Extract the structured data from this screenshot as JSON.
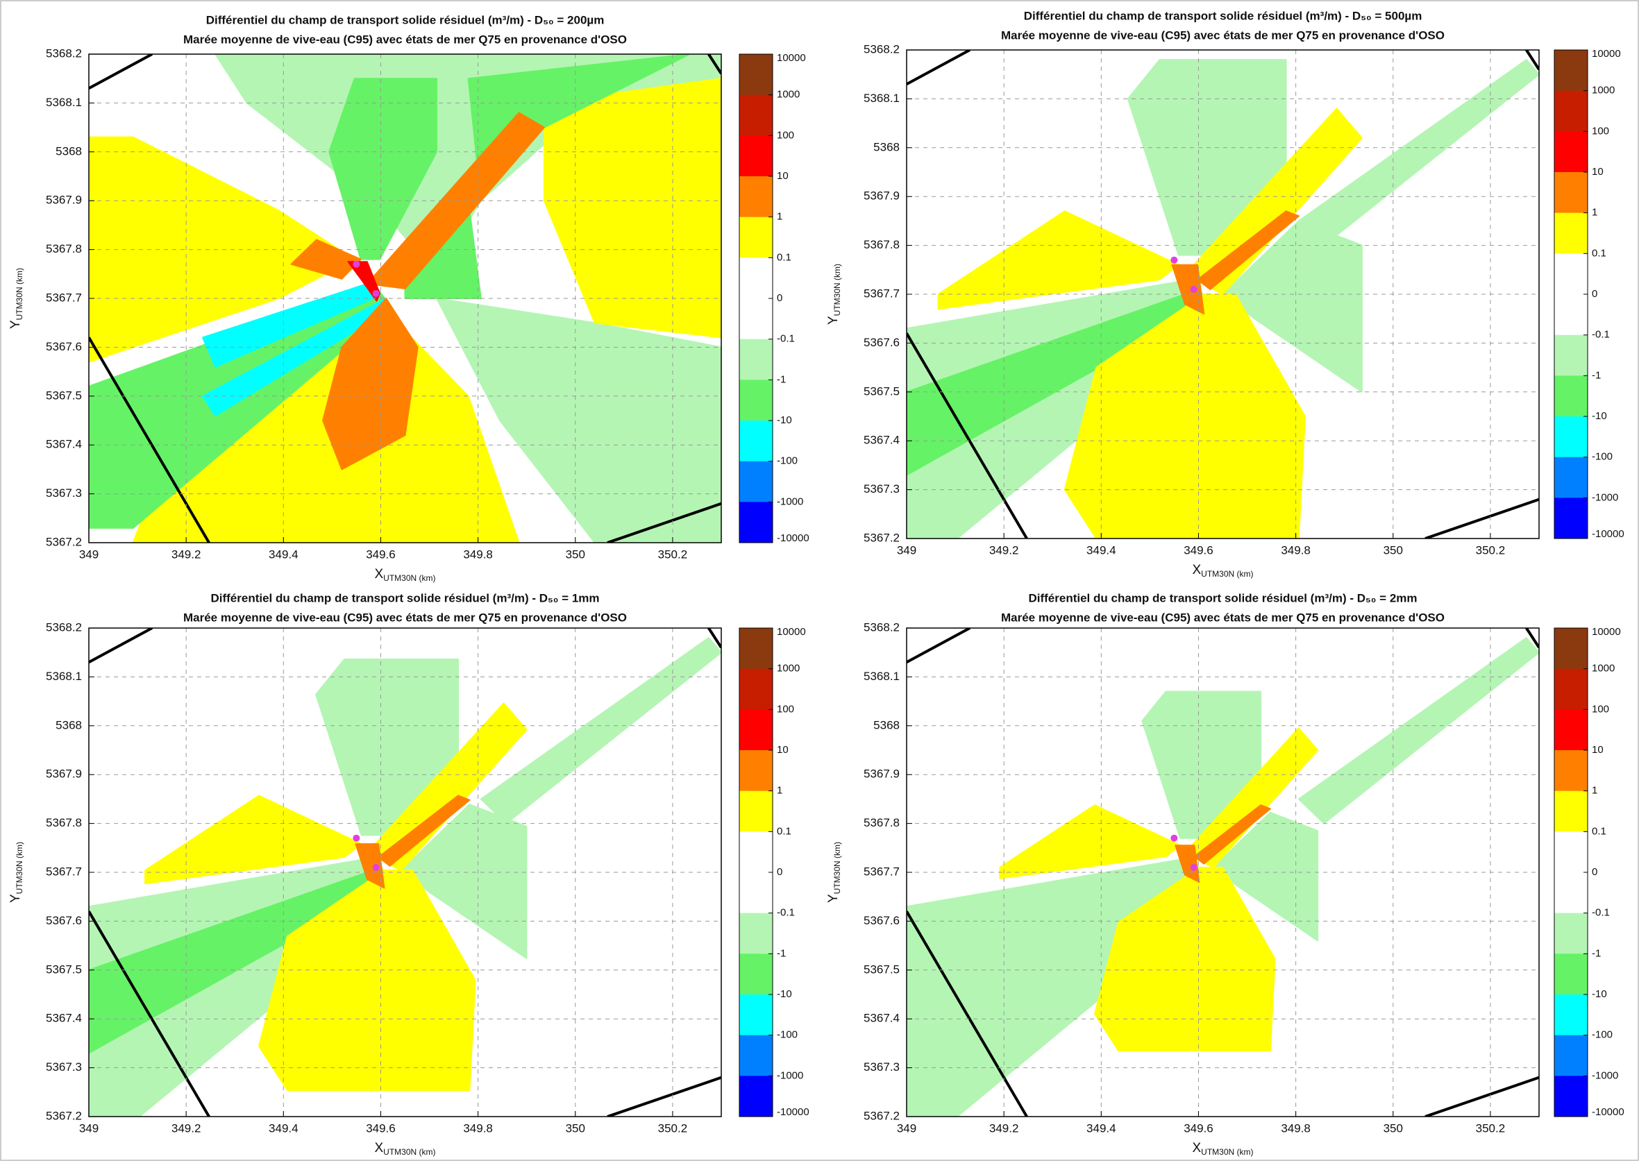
{
  "colorbar": {
    "ticks": [
      10000,
      1000,
      100,
      10,
      1,
      0.1,
      0,
      -0.1,
      -1,
      -10,
      -100,
      -1000,
      -10000
    ],
    "colors": [
      "#8b3a10",
      "#c81e00",
      "#ff0000",
      "#ff8000",
      "#ffff00",
      "#ffffff",
      "#ffffff",
      "#b4f5b4",
      "#66f266",
      "#00ffff",
      "#0080ff",
      "#0000ff"
    ]
  },
  "chart_data": [
    {
      "type": "contour",
      "title": "Différentiel du champ de transport solide résiduel (m³/m) - D₅₀ = 200µm",
      "subtitle": "Marée moyenne de vive-eau (C95) avec états de mer Q75 en provenance d'OSO",
      "xlabel": "X",
      "xlabel_sub": "UTM30N (km)",
      "ylabel": "Y",
      "ylabel_sub": "UTM30N (km)",
      "xlim": [
        349,
        350.3
      ],
      "xticks": [
        349,
        349.2,
        349.4,
        349.6,
        349.8,
        350,
        350.2
      ],
      "ylim": [
        5367.2,
        5368.2
      ],
      "yticks": [
        5367.2,
        5367.3,
        5367.4,
        5367.5,
        5367.6,
        5367.7,
        5367.8,
        5367.9,
        5368,
        5368.1,
        5368.2
      ],
      "grid": true
    },
    {
      "type": "contour",
      "title": "Différentiel du champ de transport solide résiduel (m³/m) - D₅₀ = 500µm",
      "subtitle": "Marée moyenne de vive-eau (C95) avec états de mer Q75 en provenance d'OSO",
      "xlabel": "X",
      "xlabel_sub": "UTM30N (km)",
      "ylabel": "Y",
      "ylabel_sub": "UTM30N (km)",
      "xlim": [
        349,
        350.3
      ],
      "xticks": [
        349,
        349.2,
        349.4,
        349.6,
        349.8,
        350,
        350.2
      ],
      "ylim": [
        5367.2,
        5368.2
      ],
      "yticks": [
        5367.2,
        5367.3,
        5367.4,
        5367.5,
        5367.6,
        5367.7,
        5367.8,
        5367.9,
        5368,
        5368.1,
        5368.2
      ],
      "grid": true
    },
    {
      "type": "contour",
      "title": "Différentiel du champ de transport solide résiduel (m³/m) - D₅₀ = 1mm",
      "subtitle": "Marée moyenne de vive-eau (C95) avec états de mer Q75 en provenance d'OSO",
      "xlabel": "X",
      "xlabel_sub": "UTM30N (km)",
      "ylabel": "Y",
      "ylabel_sub": "UTM30N (km)",
      "xlim": [
        349,
        350.3
      ],
      "xticks": [
        349,
        349.2,
        349.4,
        349.6,
        349.8,
        350,
        350.2
      ],
      "ylim": [
        5367.2,
        5368.2
      ],
      "yticks": [
        5367.2,
        5367.3,
        5367.4,
        5367.5,
        5367.6,
        5367.7,
        5367.8,
        5367.9,
        5368,
        5368.1,
        5368.2
      ],
      "grid": true
    },
    {
      "type": "contour",
      "title": "Différentiel du champ de transport solide résiduel (m³/m) - D₅₀ = 2mm",
      "subtitle": "Marée moyenne de vive-eau (C95) avec états de mer Q75 en provenance d'OSO",
      "xlabel": "X",
      "xlabel_sub": "UTM30N (km)",
      "ylabel": "Y",
      "ylabel_sub": "UTM30N (km)",
      "xlim": [
        349,
        350.3
      ],
      "xticks": [
        349,
        349.2,
        349.4,
        349.6,
        349.8,
        350,
        350.2
      ],
      "ylim": [
        5367.2,
        5368.2
      ],
      "yticks": [
        5367.2,
        5367.3,
        5367.4,
        5367.5,
        5367.6,
        5367.7,
        5367.8,
        5367.9,
        5368,
        5368.1,
        5368.2
      ],
      "grid": true
    }
  ]
}
